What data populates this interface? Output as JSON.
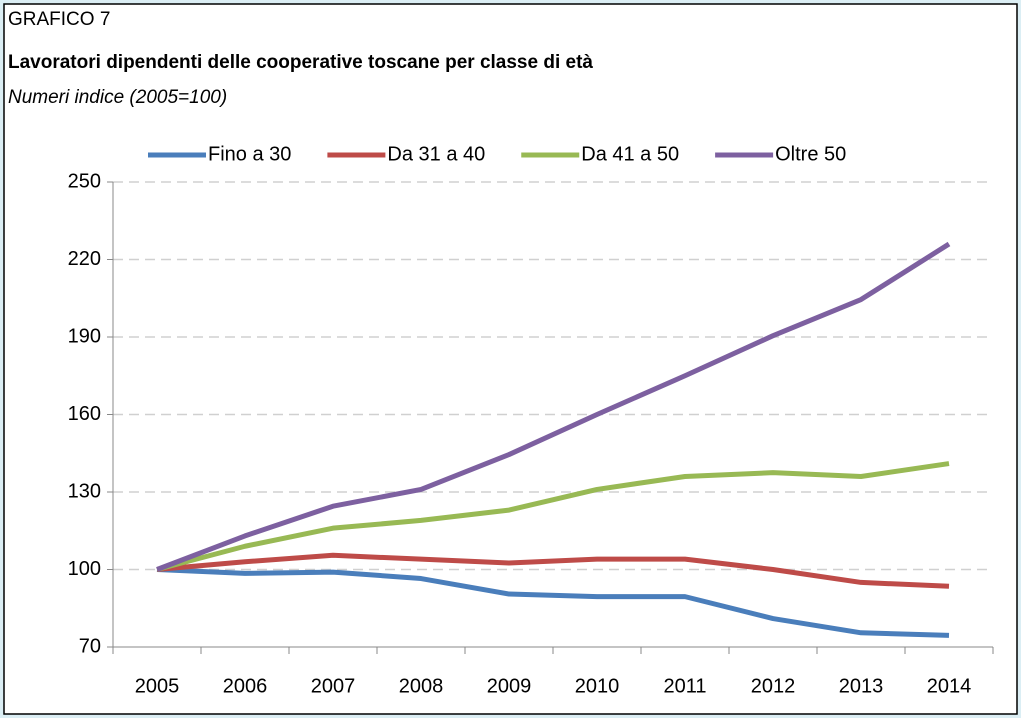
{
  "chart_data": {
    "type": "line",
    "label": "GRAFICO 7",
    "title": "Lavoratori dipendenti delle cooperative toscane per classe di età",
    "subtitle": "Numeri indice (2005=100)",
    "categories": [
      "2005",
      "2006",
      "2007",
      "2008",
      "2009",
      "2010",
      "2011",
      "2012",
      "2013",
      "2014"
    ],
    "series": [
      {
        "name": "Fino a 30",
        "color": "#4a7ebb",
        "values": [
          100,
          98.5,
          99,
          96.5,
          90.5,
          89.5,
          89.5,
          81,
          75.5,
          74.5
        ]
      },
      {
        "name": "Da 31 a 40",
        "color": "#be4b48",
        "values": [
          100,
          103,
          105.5,
          104,
          102.5,
          104,
          104,
          100,
          95,
          93.5
        ]
      },
      {
        "name": "Da 41 a 50",
        "color": "#98b954",
        "values": [
          100,
          109,
          116,
          119,
          123,
          131,
          136,
          137.5,
          136,
          141
        ]
      },
      {
        "name": "Oltre 50",
        "color": "#7d60a0",
        "values": [
          100,
          113,
          124.5,
          131,
          144.5,
          160,
          175,
          190.5,
          204.5,
          226
        ]
      }
    ],
    "ylim": [
      70,
      250
    ],
    "yticks": [
      70,
      100,
      130,
      160,
      190,
      220,
      250
    ],
    "grid": true,
    "legend": "top"
  }
}
